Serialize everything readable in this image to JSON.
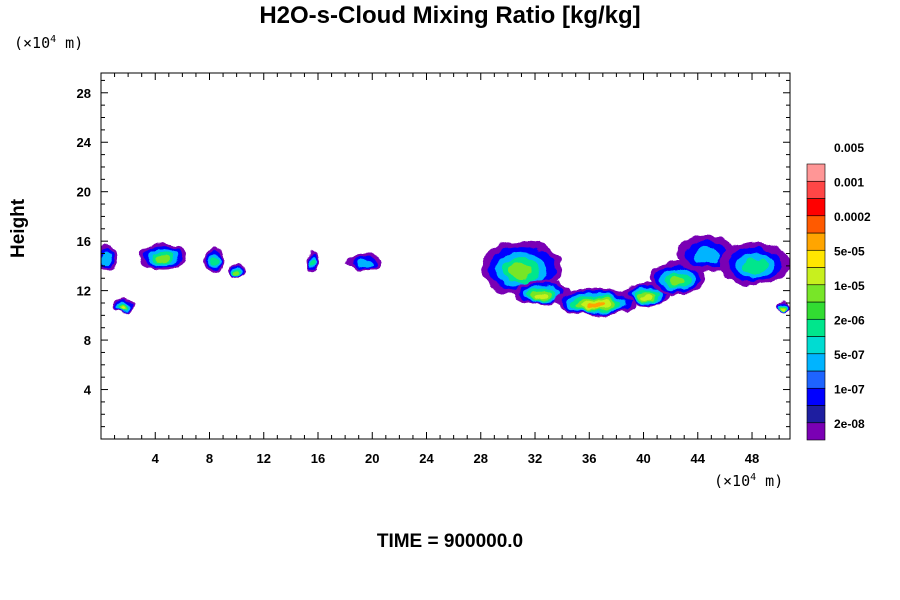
{
  "chart_data": {
    "type": "heatmap",
    "title": "H2O-s-Cloud Mixing Ratio [kg/kg]",
    "ylabel": "Height",
    "xlabel": "",
    "x_unit": "(×10⁴ m)",
    "y_unit": "(×10⁴ m)",
    "footer": "TIME = 900000.0",
    "xlim": [
      0,
      50.8
    ],
    "ylim": [
      0,
      29.6
    ],
    "x_ticks": [
      4,
      8,
      12,
      16,
      20,
      24,
      28,
      32,
      36,
      40,
      44,
      48
    ],
    "y_ticks": [
      4,
      8,
      12,
      16,
      20,
      24,
      28
    ],
    "colorbar": {
      "levels": [
        "2e-08",
        "1e-07",
        "5e-07",
        "2e-06",
        "1e-05",
        "5e-05",
        "0.0002",
        "0.001",
        "0.005"
      ],
      "colors": [
        "#7a00b4",
        "#1e1ea0",
        "#0000ff",
        "#1e64ff",
        "#00b4ff",
        "#00dcd2",
        "#00e68c",
        "#32dc32",
        "#78e628",
        "#c8f01e",
        "#ffe600",
        "#ffa500",
        "#ff5a00",
        "#ff0000",
        "#ff4646",
        "#ff9696"
      ]
    },
    "cloud_regions": [
      {
        "x": [
          -0.5,
          1.3
        ],
        "y": [
          13.6,
          15.6
        ],
        "max_level": "5e-07"
      },
      {
        "x": [
          0.9,
          2.5
        ],
        "y": [
          10.2,
          11.4
        ],
        "max_level": "5e-05"
      },
      {
        "x": [
          2.8,
          6.3
        ],
        "y": [
          13.7,
          15.8
        ],
        "max_level": "1e-05"
      },
      {
        "x": [
          7.6,
          9.1
        ],
        "y": [
          13.4,
          15.5
        ],
        "max_level": "2e-06"
      },
      {
        "x": [
          9.4,
          10.6
        ],
        "y": [
          13.0,
          14.2
        ],
        "max_level": "1e-05"
      },
      {
        "x": [
          15.2,
          16.0
        ],
        "y": [
          13.4,
          15.3
        ],
        "max_level": "2e-06"
      },
      {
        "x": [
          18.1,
          20.7
        ],
        "y": [
          13.6,
          15.0
        ],
        "max_level": "5e-07"
      },
      {
        "x": [
          28.0,
          34.0
        ],
        "y": [
          11.6,
          16.0
        ],
        "max_level": "1e-05"
      },
      {
        "x": [
          30.5,
          34.5
        ],
        "y": [
          10.8,
          12.8
        ],
        "max_level": "5e-05"
      },
      {
        "x": [
          33.5,
          39.5
        ],
        "y": [
          10.0,
          12.2
        ],
        "max_level": "0.0002"
      },
      {
        "x": [
          38.5,
          42.0
        ],
        "y": [
          10.8,
          12.6
        ],
        "max_level": "5e-05"
      },
      {
        "x": [
          40.5,
          44.5
        ],
        "y": [
          11.6,
          14.4
        ],
        "max_level": "1e-05"
      },
      {
        "x": [
          42.5,
          46.8
        ],
        "y": [
          13.4,
          16.5
        ],
        "max_level": "5e-07"
      },
      {
        "x": [
          45.6,
          50.8
        ],
        "y": [
          12.4,
          15.9
        ],
        "max_level": "2e-06"
      },
      {
        "x": [
          49.8,
          50.8
        ],
        "y": [
          10.2,
          11.2
        ],
        "max_level": "5e-05"
      }
    ]
  }
}
